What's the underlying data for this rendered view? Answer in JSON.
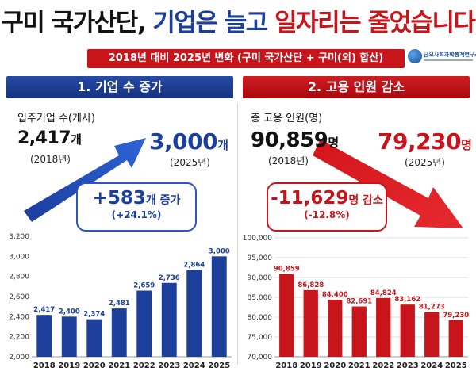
{
  "header": {
    "title_part1": "구미 국가산단,",
    "title_part2": "기업은 늘고",
    "title_part3": "일자리는 줄었습니다",
    "subtitle": "2018년 대비 2025년 변화 (구미 국가산단 + 구미(외) 합산)",
    "logo_text": "금오사회과학통계연구소",
    "colors": {
      "blue": "#1c3f9b",
      "red": "#c8151b"
    }
  },
  "left": {
    "panel_title": "1. 기업 수 증가",
    "metric_label": "입주기업 수(개사)",
    "start_value": "2,417",
    "start_unit": "개",
    "start_year": "(2018년)",
    "end_value": "3,000",
    "end_unit": "개",
    "end_year": "(2025년)",
    "change_value": "+583",
    "change_unit": "개 증가",
    "change_pct": "(+24.1%)",
    "icon": "up-arrow-icon"
  },
  "right": {
    "panel_title": "2. 고용 인원 감소",
    "metric_label": "총 고용 인원(명)",
    "start_value": "90,859",
    "start_unit": "명",
    "start_year": "(2018년)",
    "end_value": "79,230",
    "end_unit": "명",
    "end_year": "(2025년)",
    "change_value": "-11,629",
    "change_unit": "명 감소",
    "change_pct": "(-12.8%)",
    "icon": "down-arrow-icon"
  },
  "chart_data": [
    {
      "type": "bar",
      "categories": [
        "2018",
        "2019",
        "2020",
        "2021",
        "2022",
        "2023",
        "2024",
        "2025"
      ],
      "values": [
        2417,
        2400,
        2374,
        2481,
        2659,
        2736,
        2864,
        3000
      ],
      "data_labels": [
        "2,417",
        "2,400",
        "2,374",
        "2,481",
        "2,659",
        "2,736",
        "2,864",
        "3,000"
      ],
      "ylim": [
        2000,
        3200
      ],
      "yticks": [
        "2,000",
        "2,200",
        "2,400",
        "2,600",
        "2,800",
        "3,000",
        "3,200"
      ],
      "grid": false,
      "color": "#1c3f9b"
    },
    {
      "type": "bar",
      "categories": [
        "2018",
        "2019",
        "2020",
        "2021",
        "2022",
        "2023",
        "2024",
        "2025"
      ],
      "values": [
        90859,
        86828,
        84400,
        82691,
        84824,
        83162,
        81273,
        79230
      ],
      "data_labels": [
        "90,859",
        "86,828",
        "84,400",
        "82,691",
        "84,824",
        "83,162",
        "81,273",
        "79,230"
      ],
      "ylim": [
        70000,
        100000
      ],
      "yticks": [
        "70,000",
        "75,000",
        "80,000",
        "85,000",
        "90,000",
        "95,000",
        "100,000"
      ],
      "grid": true,
      "color": "#c8151b"
    }
  ]
}
